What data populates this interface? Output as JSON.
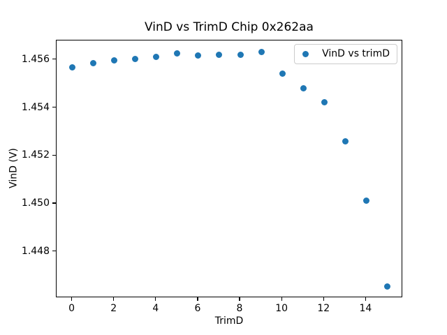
{
  "figure": {
    "background": "#ffffff"
  },
  "chart_data": {
    "type": "scatter",
    "title": "VinD vs TrimD Chip 0x262aa",
    "xlabel": "TrimD",
    "ylabel": "VinD (V)",
    "legend": {
      "label": "VinD vs trimD",
      "position": "upper right"
    },
    "marker_color": "#1f77b4",
    "grid": false,
    "xlim": [
      -0.75,
      15.75
    ],
    "ylim": [
      1.44607,
      1.45681
    ],
    "x_ticks": [
      0,
      2,
      4,
      6,
      8,
      10,
      12,
      14
    ],
    "y_ticks": [
      1.448,
      1.45,
      1.452,
      1.454,
      1.456
    ],
    "y_tick_decimals": 3,
    "series": [
      {
        "name": "VinD vs trimD",
        "x": [
          0,
          1,
          2,
          3,
          4,
          5,
          6,
          7,
          8,
          9,
          10,
          11,
          12,
          13,
          14,
          15
        ],
        "y": [
          1.45569,
          1.45585,
          1.45597,
          1.45605,
          1.45612,
          1.45627,
          1.45617,
          1.45621,
          1.4562,
          1.45632,
          1.45543,
          1.45483,
          1.45422,
          1.45261,
          1.45012,
          1.44655
        ]
      }
    ]
  }
}
